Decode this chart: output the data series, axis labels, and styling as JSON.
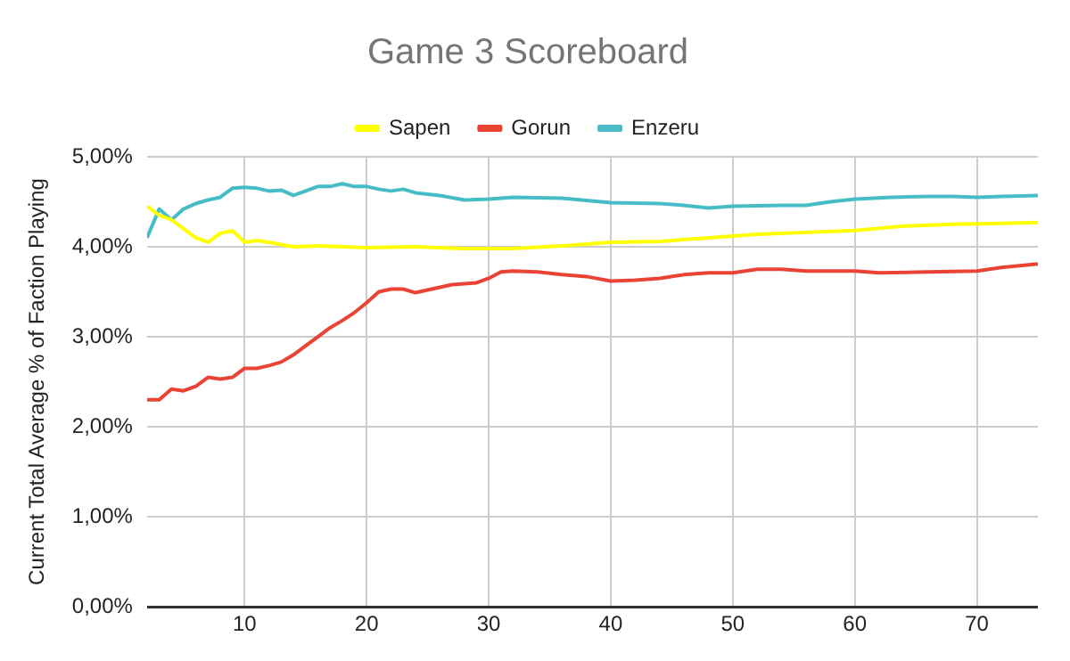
{
  "chart_data": {
    "type": "line",
    "title": "Game 3 Scoreboard",
    "ylabel": "Current Total Average % of Faction Playing",
    "xlim": [
      2,
      75
    ],
    "xticks": [
      10,
      20,
      30,
      40,
      50,
      60,
      70
    ],
    "ylim": [
      0,
      5
    ],
    "yticks": [
      {
        "value": 0,
        "label": "0,00%"
      },
      {
        "value": 1,
        "label": "1,00%"
      },
      {
        "value": 2,
        "label": "2,00%"
      },
      {
        "value": 3,
        "label": "3,00%"
      },
      {
        "value": 4,
        "label": "4,00%"
      },
      {
        "value": 5,
        "label": "5,00%"
      }
    ],
    "grid": true,
    "legend": "top",
    "marker": "none",
    "line_style": "solid",
    "series": [
      {
        "name": "Sapen",
        "color": "#ffff00",
        "x": [
          2,
          3,
          4,
          5,
          6,
          7,
          8,
          9,
          10,
          11,
          12,
          14,
          16,
          20,
          24,
          28,
          32,
          36,
          40,
          44,
          48,
          52,
          56,
          60,
          64,
          68,
          72,
          75
        ],
        "values": [
          4.45,
          4.35,
          4.3,
          4.2,
          4.1,
          4.05,
          4.15,
          4.18,
          4.05,
          4.07,
          4.05,
          4.0,
          4.01,
          3.99,
          4.0,
          3.98,
          3.98,
          4.01,
          4.05,
          4.06,
          4.1,
          4.14,
          4.16,
          4.18,
          4.23,
          4.25,
          4.26,
          4.27
        ]
      },
      {
        "name": "Gorun",
        "color": "#ea4335",
        "x": [
          2,
          3,
          4,
          5,
          6,
          7,
          8,
          9,
          10,
          11,
          12,
          13,
          14,
          15,
          16,
          17,
          18,
          19,
          20,
          21,
          22,
          23,
          24,
          25,
          26,
          27,
          28,
          29,
          30,
          31,
          32,
          34,
          36,
          38,
          40,
          42,
          44,
          46,
          48,
          50,
          52,
          54,
          56,
          60,
          62,
          66,
          70,
          72,
          75
        ],
        "values": [
          2.3,
          2.3,
          2.42,
          2.4,
          2.45,
          2.55,
          2.53,
          2.55,
          2.65,
          2.65,
          2.68,
          2.72,
          2.8,
          2.9,
          3.0,
          3.1,
          3.18,
          3.27,
          3.38,
          3.5,
          3.53,
          3.53,
          3.49,
          3.52,
          3.55,
          3.58,
          3.59,
          3.6,
          3.65,
          3.72,
          3.73,
          3.72,
          3.69,
          3.67,
          3.62,
          3.63,
          3.65,
          3.69,
          3.71,
          3.71,
          3.75,
          3.75,
          3.73,
          3.73,
          3.71,
          3.72,
          3.73,
          3.77,
          3.81
        ]
      },
      {
        "name": "Enzeru",
        "color": "#46bdc6",
        "x": [
          2,
          3,
          4,
          5,
          6,
          7,
          8,
          9,
          10,
          11,
          12,
          13,
          14,
          15,
          16,
          17,
          18,
          19,
          20,
          21,
          22,
          23,
          24,
          26,
          28,
          30,
          32,
          36,
          40,
          44,
          46,
          48,
          50,
          54,
          56,
          58,
          60,
          63,
          66,
          68,
          70,
          72,
          75
        ],
        "values": [
          4.1,
          4.42,
          4.3,
          4.42,
          4.48,
          4.52,
          4.55,
          4.65,
          4.66,
          4.65,
          4.62,
          4.63,
          4.57,
          4.62,
          4.67,
          4.67,
          4.7,
          4.67,
          4.67,
          4.64,
          4.62,
          4.64,
          4.6,
          4.57,
          4.52,
          4.53,
          4.55,
          4.54,
          4.49,
          4.48,
          4.46,
          4.43,
          4.45,
          4.46,
          4.46,
          4.5,
          4.53,
          4.55,
          4.56,
          4.56,
          4.55,
          4.56,
          4.57
        ]
      }
    ]
  }
}
